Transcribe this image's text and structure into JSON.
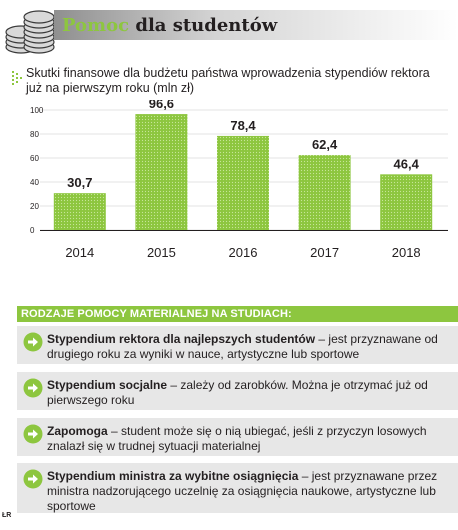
{
  "header": {
    "title_accent": "Pomoc",
    "title_rest": "dla studentów",
    "accent_color": "#8dc63f"
  },
  "subtitle": "Skutki finansowe dla budżetu państwa wprowadzenia stypendiów rektora już na pierwszym roku (mln zł)",
  "chart_data": {
    "type": "bar",
    "title": "Skutki finansowe dla budżetu państwa wprowadzenia stypendiów rektora już na pierwszym roku (mln zł)",
    "categories": [
      "2014",
      "2015",
      "2016",
      "2017",
      "2018"
    ],
    "values": [
      30.7,
      96.6,
      78.4,
      62.4,
      46.4
    ],
    "value_labels": [
      "30,7",
      "96,6",
      "78,4",
      "62,4",
      "46,4"
    ],
    "ylim": [
      0,
      100
    ],
    "yticks": [
      "0",
      "20",
      "40",
      "60",
      "80",
      "100"
    ],
    "grid": true,
    "bar_color": "#8dc63f",
    "xlabel": "",
    "ylabel": ""
  },
  "aid": {
    "heading": "RODZAJE POMOCY MATERIALNEJ NA STUDIACH:",
    "items": [
      {
        "name": "Stypendium rektora dla najlepszych studentów",
        "desc": " – jest przyznawane od drugiego roku za wyniki w nauce, artystyczne lub sportowe"
      },
      {
        "name": "Stypendium socjalne",
        "desc": " – zależy od zarobków. Można je otrzymać już od pierwszego roku"
      },
      {
        "name": "Zapomoga",
        "desc": " – student może się o nią ubiegać, jeśli z przyczyn losowych znalazł się w trudnej sytuacji materialnej"
      },
      {
        "name": "Stypendium ministra za wybitne osiągnięcia",
        "desc": " – jest przyznawane przez ministra nadzorującego uczelnię za osiągnięcia naukowe, artystyczne lub sportowe"
      }
    ]
  },
  "credit": "ŁR"
}
